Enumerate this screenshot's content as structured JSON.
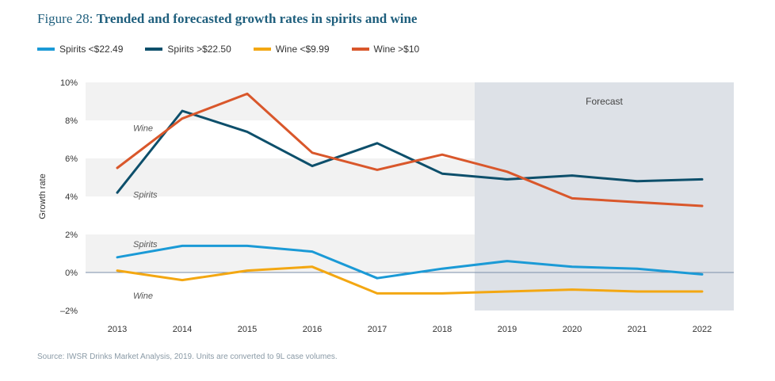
{
  "figure_label": "Figure 28:",
  "title": "Trended and forecasted growth rates in spirits and wine",
  "source": "Source: IWSR Drinks Market Analysis, 2019. Units are converted to 9L case volumes.",
  "colors": {
    "spirits_low": "#1b9ad6",
    "spirits_high": "#0d4f6b",
    "wine_low": "#f3a712",
    "wine_high": "#d9572b",
    "band": "#f2f2f2",
    "forecast_bg": "#dde1e7",
    "zero_line": "#7a8ea8"
  },
  "chart_data": {
    "type": "line",
    "x": [
      "2013",
      "2014",
      "2015",
      "2016",
      "2017",
      "2018",
      "2019",
      "2020",
      "2021",
      "2022"
    ],
    "ylabel": "Growth rate",
    "ylim": [
      -2,
      10
    ],
    "yticks": [
      "10%",
      "8%",
      "6%",
      "4%",
      "2%",
      "0%",
      "–2%"
    ],
    "ytick_values": [
      10,
      8,
      6,
      4,
      2,
      0,
      -2
    ],
    "forecast_label": "Forecast",
    "forecast_start": "2019",
    "legend_position": "top-left",
    "series": [
      {
        "name": "Spirits <$22.49",
        "color": "#1b9ad6",
        "values": [
          0.8,
          1.4,
          1.4,
          1.1,
          -0.3,
          0.2,
          0.6,
          0.3,
          0.2,
          -0.1
        ]
      },
      {
        "name": "Spirits >$22.50",
        "color": "#0d4f6b",
        "values": [
          4.2,
          8.5,
          7.4,
          5.6,
          6.8,
          5.2,
          4.9,
          5.1,
          4.8,
          4.9
        ]
      },
      {
        "name": "Wine <$9.99",
        "color": "#f3a712",
        "values": [
          0.1,
          -0.4,
          0.1,
          0.3,
          -1.1,
          -1.1,
          -1.0,
          -0.9,
          -1.0,
          -1.0
        ]
      },
      {
        "name": "Wine >$10",
        "color": "#d9572b",
        "values": [
          5.5,
          8.1,
          9.4,
          6.3,
          5.4,
          6.2,
          5.3,
          3.9,
          3.7,
          3.5
        ]
      }
    ],
    "annotations": [
      {
        "text": "Wine",
        "x": "2013",
        "y": 7.6
      },
      {
        "text": "Spirits",
        "x": "2013",
        "y": 4.1
      },
      {
        "text": "Spirits",
        "x": "2013",
        "y": 1.5
      },
      {
        "text": "Wine",
        "x": "2013",
        "y": -1.2
      }
    ]
  }
}
